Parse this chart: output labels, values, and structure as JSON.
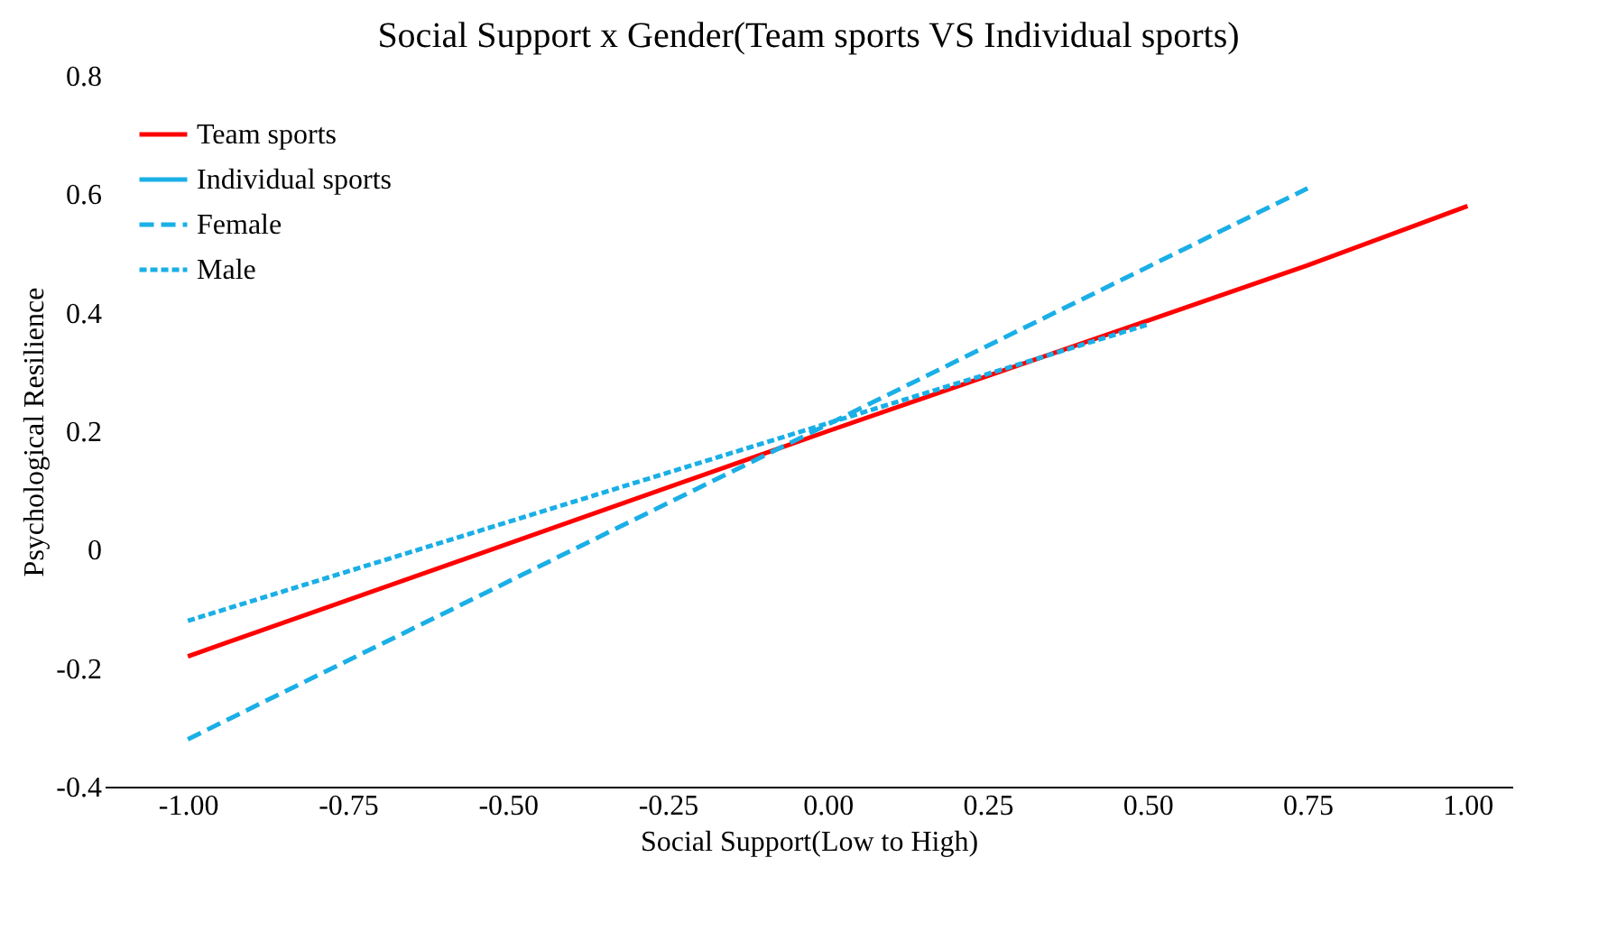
{
  "chart_data": {
    "type": "line",
    "title": "Social Support x Gender(Team sports VS Individual sports)",
    "xlabel": "Social Support(Low to High)",
    "ylabel": "Psychological Resilience",
    "series": [
      {
        "name": "Team sports",
        "color": "#ff0000",
        "line_style": "solid",
        "x": [
          -1,
          0,
          0.75,
          1
        ],
        "values": [
          -0.18,
          0.2,
          0.48,
          0.58
        ]
      },
      {
        "name": "Individual sports",
        "color": "#1aafe6",
        "line_style": "solid"
      },
      {
        "name": "Female",
        "color": "#1aafe6",
        "line_style": "dashed",
        "x": [
          -1,
          0.75
        ],
        "values": [
          -0.32,
          0.61
        ]
      },
      {
        "name": "Male",
        "color": "#1aafe6",
        "line_style": "dotted",
        "x": [
          -1,
          0.5
        ],
        "values": [
          -0.12,
          0.38
        ]
      }
    ],
    "xlim": [
      -1.13,
      1.07
    ],
    "xticks": [
      {
        "value": -1,
        "label": "-1.00"
      },
      {
        "value": -0.75,
        "label": "-0.75"
      },
      {
        "value": -0.5,
        "label": "-0.50"
      },
      {
        "value": -0.25,
        "label": "-0.25"
      },
      {
        "value": 0,
        "label": "0.00"
      },
      {
        "value": 0.25,
        "label": "0.25"
      },
      {
        "value": 0.5,
        "label": "0.50"
      },
      {
        "value": 0.75,
        "label": "0.75"
      },
      {
        "value": 1,
        "label": "1.00"
      }
    ],
    "ylim": [
      -0.4,
      0.8
    ],
    "yticks": [
      -0.4,
      -0.2,
      0,
      0.2,
      0.4,
      0.6,
      0.8
    ],
    "grid": false,
    "legend": "top left",
    "marker": "none"
  }
}
